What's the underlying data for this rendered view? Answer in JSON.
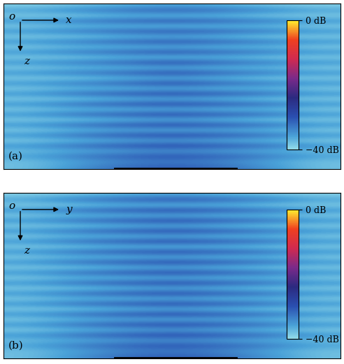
{
  "chart_data": [
    {
      "type": "heatmap",
      "panel_label": "(a)",
      "origin_label": "o",
      "horizontal_axis_label": "x",
      "vertical_axis_label": "z",
      "tick_labels": false,
      "cells": [
        [
          -39,
          -38,
          -37,
          -36,
          -37,
          -38,
          -39
        ],
        [
          -36,
          -34,
          -32,
          -31,
          -32,
          -34,
          -36
        ],
        [
          -39,
          -39,
          -38,
          -38,
          -38,
          -39,
          -39
        ],
        [
          -35,
          -33,
          -31,
          -30,
          -31,
          -33,
          -35
        ],
        [
          -39,
          -38,
          -38,
          -38,
          -38,
          -38,
          -39
        ],
        [
          -35,
          -33,
          -31,
          -30,
          -31,
          -33,
          -35
        ],
        [
          -39,
          -39,
          -38,
          -37,
          -38,
          -39,
          -39
        ],
        [
          -35,
          -33,
          -31,
          -30,
          -31,
          -33,
          -35
        ],
        [
          -39,
          -38,
          -38,
          -37,
          -38,
          -38,
          -39
        ],
        [
          -35,
          -33,
          -31,
          -30,
          -31,
          -33,
          -35
        ],
        [
          -39,
          -39,
          -38,
          -38,
          -38,
          -39,
          -39
        ],
        [
          -35,
          -33,
          -31,
          -29,
          -31,
          -33,
          -35
        ],
        [
          -39,
          -38,
          -38,
          -37,
          -38,
          -38,
          -39
        ],
        [
          -35,
          -33,
          -31,
          -29,
          -31,
          -33,
          -35
        ],
        [
          -39,
          -39,
          -38,
          -37,
          -38,
          -39,
          -39
        ],
        [
          -35,
          -33,
          -31,
          -29,
          -31,
          -33,
          -35
        ],
        [
          -39,
          -38,
          -38,
          -37,
          -38,
          -38,
          -39
        ],
        [
          -35,
          -32,
          -30,
          -29,
          -30,
          -32,
          -35
        ],
        [
          -39,
          -39,
          -38,
          -37,
          -38,
          -39,
          -39
        ],
        [
          -35,
          -32,
          -30,
          -29,
          -30,
          -32,
          -35
        ],
        [
          -39,
          -38,
          -38,
          -37,
          -38,
          -38,
          -39
        ],
        [
          -35,
          -32,
          -30,
          -29,
          -30,
          -32,
          -35
        ],
        [
          -39,
          -39,
          -38,
          -37,
          -38,
          -39,
          -39
        ],
        [
          -35,
          -32,
          -30,
          -29,
          -30,
          -32,
          -35
        ],
        [
          -39,
          -38,
          -37,
          -37,
          -37,
          -38,
          -39
        ],
        [
          -35,
          -32,
          -30,
          -29,
          -30,
          -32,
          -35
        ],
        [
          -39,
          -38,
          -37,
          -36,
          -37,
          -38,
          -39
        ],
        [
          -35,
          -32,
          -30,
          -29,
          -30,
          -32,
          -35
        ],
        [
          -38,
          -37,
          -36,
          -35,
          -36,
          -37,
          -38
        ],
        [
          -36,
          -33,
          -31,
          -30,
          -31,
          -33,
          -36
        ],
        [
          -38,
          -36,
          -34,
          -33,
          -34,
          -36,
          -38
        ],
        [
          -38,
          -35,
          -32,
          -31,
          -32,
          -35,
          -38
        ]
      ],
      "colorbar": {
        "range": [
          -40,
          0
        ],
        "ticks": [
          {
            "value": 0,
            "label": "0 dB"
          },
          {
            "value": -40,
            "label": "−40 dB"
          }
        ]
      }
    },
    {
      "type": "heatmap",
      "panel_label": "(b)",
      "origin_label": "o",
      "horizontal_axis_label": "y",
      "vertical_axis_label": "z",
      "tick_labels": false,
      "cells": [
        [
          -39,
          -38,
          -37,
          -36,
          -37,
          -38,
          -39
        ],
        [
          -36,
          -33,
          -31,
          -30,
          -31,
          -33,
          -36
        ],
        [
          -39,
          -39,
          -38,
          -38,
          -38,
          -39,
          -39
        ],
        [
          -35,
          -32,
          -30,
          -29,
          -30,
          -32,
          -35
        ],
        [
          -39,
          -38,
          -38,
          -37,
          -38,
          -38,
          -39
        ],
        [
          -35,
          -32,
          -30,
          -29,
          -30,
          -32,
          -35
        ],
        [
          -39,
          -39,
          -38,
          -37,
          -38,
          -39,
          -39
        ],
        [
          -35,
          -32,
          -30,
          -29,
          -30,
          -32,
          -35
        ],
        [
          -39,
          -38,
          -38,
          -37,
          -38,
          -38,
          -39
        ],
        [
          -35,
          -32,
          -30,
          -29,
          -30,
          -32,
          -35
        ],
        [
          -39,
          -39,
          -38,
          -38,
          -38,
          -39,
          -39
        ],
        [
          -35,
          -32,
          -30,
          -29,
          -30,
          -32,
          -35
        ],
        [
          -39,
          -38,
          -38,
          -37,
          -38,
          -38,
          -39
        ],
        [
          -35,
          -32,
          -30,
          -29,
          -30,
          -32,
          -35
        ],
        [
          -39,
          -39,
          -38,
          -37,
          -38,
          -39,
          -39
        ],
        [
          -35,
          -32,
          -30,
          -29,
          -30,
          -32,
          -35
        ],
        [
          -39,
          -38,
          -38,
          -37,
          -38,
          -38,
          -39
        ],
        [
          -35,
          -32,
          -30,
          -29,
          -30,
          -32,
          -35
        ],
        [
          -39,
          -39,
          -38,
          -37,
          -38,
          -39,
          -39
        ],
        [
          -35,
          -32,
          -30,
          -29,
          -30,
          -32,
          -35
        ],
        [
          -39,
          -38,
          -38,
          -37,
          -38,
          -38,
          -39
        ],
        [
          -35,
          -32,
          -30,
          -29,
          -30,
          -32,
          -35
        ],
        [
          -39,
          -39,
          -38,
          -37,
          -38,
          -39,
          -39
        ],
        [
          -35,
          -32,
          -30,
          -29,
          -30,
          -32,
          -35
        ],
        [
          -39,
          -38,
          -37,
          -37,
          -37,
          -38,
          -39
        ],
        [
          -35,
          -32,
          -30,
          -29,
          -30,
          -32,
          -35
        ],
        [
          -39,
          -38,
          -37,
          -36,
          -37,
          -38,
          -39
        ],
        [
          -35,
          -32,
          -30,
          -29,
          -30,
          -32,
          -35
        ],
        [
          -38,
          -37,
          -36,
          -35,
          -36,
          -37,
          -38
        ],
        [
          -36,
          -33,
          -31,
          -30,
          -31,
          -33,
          -36
        ],
        [
          -38,
          -36,
          -34,
          -33,
          -34,
          -36,
          -38
        ],
        [
          -38,
          -35,
          -32,
          -31,
          -32,
          -35,
          -38
        ]
      ],
      "colorbar": {
        "range": [
          -40,
          0
        ],
        "ticks": [
          {
            "value": 0,
            "label": "0 dB"
          },
          {
            "value": -40,
            "label": "−40 dB"
          }
        ]
      }
    }
  ]
}
